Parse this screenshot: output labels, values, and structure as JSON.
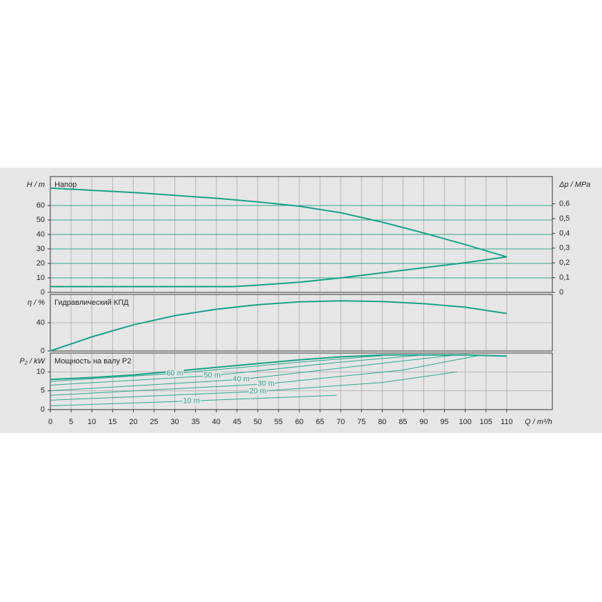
{
  "chart_data": [
    {
      "type": "line",
      "title": "Напор",
      "ylabel": "H / m",
      "y2label": "Δp / MPa",
      "ylim": [
        0,
        80
      ],
      "yticks": [
        0,
        10,
        20,
        30,
        40,
        50,
        60
      ],
      "y2lim": [
        0,
        0.785
      ],
      "y2ticks": [
        0,
        {
          "value": 0.1,
          "label": "0,1"
        },
        {
          "value": 0.2,
          "label": "0,2"
        },
        {
          "value": 0.3,
          "label": "0,3"
        },
        {
          "value": 0.4,
          "label": "0,4"
        },
        {
          "value": 0.5,
          "label": "0,5"
        },
        {
          "value": 0.6,
          "label": "0,6"
        }
      ],
      "grid": true,
      "hgrid_color": "#2aa58f",
      "series": [
        {
          "color": "#15a088",
          "x": [
            0,
            10,
            20,
            30,
            40,
            50,
            60,
            70,
            80,
            90,
            100,
            110
          ],
          "values": [
            72,
            70.5,
            69,
            67,
            65,
            62.5,
            59.5,
            55,
            48.5,
            41,
            33,
            24.5
          ]
        },
        {
          "color": "#15a088",
          "x": [
            0,
            44,
            50,
            60,
            70,
            80,
            90,
            100,
            110
          ],
          "values": [
            4,
            4,
            5,
            7,
            10,
            13.5,
            17,
            20.5,
            24.5
          ]
        }
      ]
    },
    {
      "type": "line",
      "title": "Гидравлический КПД",
      "ylabel": "η / %",
      "ylim": [
        0,
        80
      ],
      "yticks": [
        0,
        40
      ],
      "grid": true,
      "hgrid_color": "#b4b4b4",
      "series": [
        {
          "color": "#15a088",
          "x": [
            0,
            10,
            20,
            30,
            40,
            50,
            60,
            70,
            80,
            90,
            100,
            110
          ],
          "values": [
            0,
            20,
            37,
            50,
            59,
            65.5,
            69.5,
            71,
            70,
            67,
            62,
            53
          ]
        }
      ]
    },
    {
      "type": "line",
      "title": "Мощность на валу P2",
      "ylabel": "P₂ / kW",
      "xlabel": "Q / m³/h",
      "xlim": [
        0,
        121
      ],
      "xticks": [
        0,
        5,
        10,
        15,
        20,
        25,
        30,
        35,
        40,
        45,
        50,
        55,
        60,
        65,
        70,
        75,
        80,
        85,
        90,
        95,
        100,
        105,
        110
      ],
      "ylim": [
        0,
        15
      ],
      "yticks": [
        0,
        5,
        10
      ],
      "grid": true,
      "hgrid_color": "#b4b4b4",
      "series": [
        {
          "color": "#15a088",
          "x": [
            0,
            10,
            20,
            30,
            40,
            50,
            60,
            70,
            80,
            90,
            100,
            110
          ],
          "values": [
            8,
            8.5,
            9.2,
            10.2,
            11.2,
            12.2,
            13.2,
            14,
            14.5,
            14.5,
            14.5,
            14.2
          ]
        },
        {
          "name": "60 m",
          "color": "#2aa58f",
          "x": [
            0,
            30,
            60,
            80
          ],
          "values": [
            7.5,
            9.6,
            12.6,
            14.3
          ]
        },
        {
          "name": "50 m",
          "color": "#2aa58f",
          "x": [
            0,
            39,
            70,
            90
          ],
          "values": [
            6.5,
            9,
            12.6,
            14.5
          ]
        },
        {
          "name": "40 m",
          "color": "#2aa58f",
          "x": [
            0,
            46,
            80,
            97
          ],
          "values": [
            5,
            8,
            12.3,
            14.4
          ]
        },
        {
          "name": "30 m",
          "color": "#2aa58f",
          "x": [
            0,
            52,
            85,
            103
          ],
          "values": [
            3.8,
            6.8,
            10.5,
            14.3
          ]
        },
        {
          "name": "20 m",
          "color": "#2aa58f",
          "x": [
            0,
            50,
            80,
            98
          ],
          "values": [
            2.5,
            4.8,
            7.2,
            10
          ]
        },
        {
          "name": "10 m",
          "color": "#2aa58f",
          "x": [
            0,
            34,
            69
          ],
          "values": [
            1,
            2.3,
            3.8
          ]
        }
      ]
    }
  ]
}
